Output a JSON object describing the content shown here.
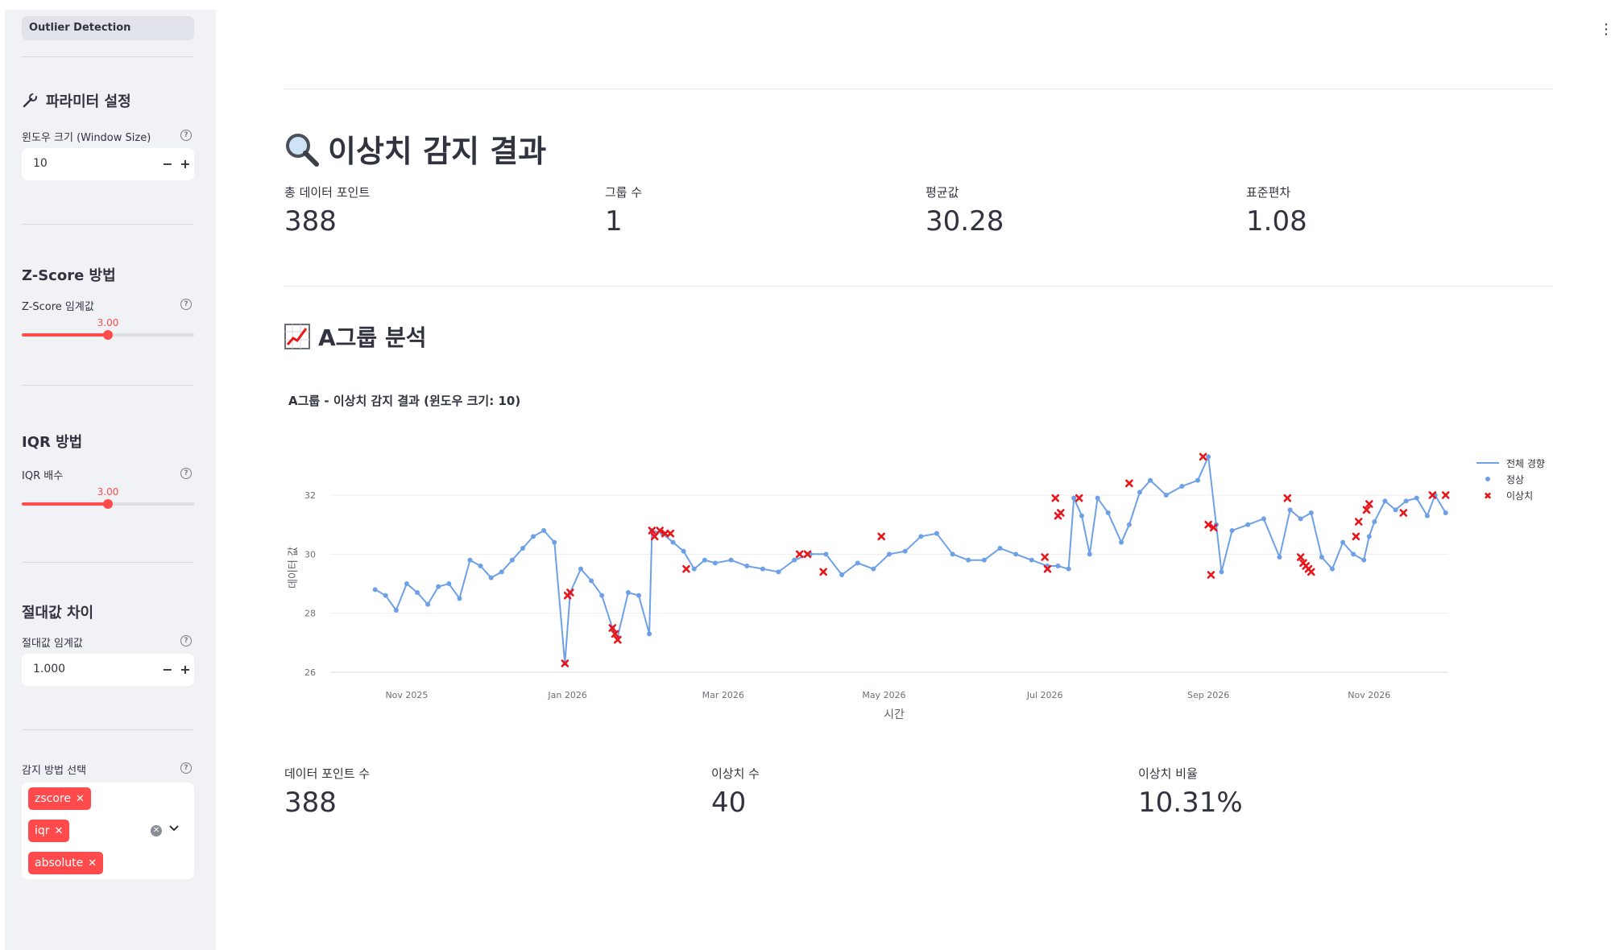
{
  "sidebar": {
    "nav_item": "Outlier Detection",
    "params_title": "파라미터 설정",
    "window_label": "윈도우 크기 (Window Size)",
    "window_value": "10",
    "zscore_title": "Z-Score 방법",
    "zscore_label": "Z-Score 임계값",
    "zscore_value": "3.00",
    "zscore_fraction": 0.5,
    "iqr_title": "IQR 방법",
    "iqr_label": "IQR 배수",
    "iqr_value": "3.00",
    "iqr_fraction": 0.5,
    "abs_title": "절대값 차이",
    "abs_label": "절대값 임계값",
    "abs_value": "1.000",
    "methods_label": "감지 방법 선택",
    "methods": [
      "zscore",
      "iqr",
      "absolute"
    ],
    "minus": "−",
    "plus": "+",
    "help": "?"
  },
  "main": {
    "title": "이상치 감지 결과",
    "summary": [
      {
        "label": "총 데이터 포인트",
        "value": "388"
      },
      {
        "label": "그룹 수",
        "value": "1"
      },
      {
        "label": "평균값",
        "value": "30.28"
      },
      {
        "label": "표준편차",
        "value": "1.08"
      }
    ],
    "group_title": "A그룹 분석",
    "group_metrics": [
      {
        "label": "데이터 포인트 수",
        "value": "388"
      },
      {
        "label": "이상치 수",
        "value": "40"
      },
      {
        "label": "이상치 비율",
        "value": "10.31%"
      }
    ]
  },
  "colors": {
    "accent": "#ff4b4b",
    "series": "#6ea0e8",
    "outlier": "#e8161b"
  },
  "chart_data": {
    "type": "line",
    "title": "A그룹 - 이상치 감지 결과 (윈도우 크기: 10)",
    "xlabel": "시간",
    "ylabel": "데이터 값",
    "x_ticks": [
      "Nov 2025",
      "Jan 2026",
      "Mar 2026",
      "May 2026",
      "Jul 2026",
      "Sep 2026",
      "Nov 2026"
    ],
    "y_ticks": [
      "26",
      "28",
      "30",
      "32"
    ],
    "ylim": [
      26,
      33.5
    ],
    "xlim": [
      "2025-10-03",
      "2026-12-01"
    ],
    "legend": [
      "전체 경향",
      "정상",
      "이상치"
    ],
    "legend_position": "top-right",
    "series": [
      {
        "name": "전체 경향",
        "points": [
          [
            "2025-10-20",
            28.8
          ],
          [
            "2025-10-24",
            28.6
          ],
          [
            "2025-10-28",
            28.1
          ],
          [
            "2025-11-01",
            29.0
          ],
          [
            "2025-11-05",
            28.7
          ],
          [
            "2025-11-09",
            28.3
          ],
          [
            "2025-11-13",
            28.9
          ],
          [
            "2025-11-17",
            29.0
          ],
          [
            "2025-11-21",
            28.5
          ],
          [
            "2025-11-25",
            29.8
          ],
          [
            "2025-11-29",
            29.6
          ],
          [
            "2025-12-03",
            29.2
          ],
          [
            "2025-12-07",
            29.4
          ],
          [
            "2025-12-11",
            29.8
          ],
          [
            "2025-12-15",
            30.2
          ],
          [
            "2025-12-19",
            30.6
          ],
          [
            "2025-12-23",
            30.8
          ],
          [
            "2025-12-27",
            30.4
          ],
          [
            "2025-12-31",
            26.3
          ],
          [
            "2026-01-02",
            28.7
          ],
          [
            "2026-01-06",
            29.5
          ],
          [
            "2026-01-10",
            29.1
          ],
          [
            "2026-01-14",
            28.6
          ],
          [
            "2026-01-18",
            27.5
          ],
          [
            "2026-01-20",
            27.2
          ],
          [
            "2026-01-24",
            28.7
          ],
          [
            "2026-01-28",
            28.6
          ],
          [
            "2026-02-01",
            27.3
          ],
          [
            "2026-02-02",
            30.8
          ],
          [
            "2026-02-06",
            30.7
          ],
          [
            "2026-02-10",
            30.4
          ],
          [
            "2026-02-14",
            30.1
          ],
          [
            "2026-02-18",
            29.5
          ],
          [
            "2026-02-22",
            29.8
          ],
          [
            "2026-02-26",
            29.7
          ],
          [
            "2026-03-04",
            29.8
          ],
          [
            "2026-03-10",
            29.6
          ],
          [
            "2026-03-16",
            29.5
          ],
          [
            "2026-03-22",
            29.4
          ],
          [
            "2026-03-28",
            29.8
          ],
          [
            "2026-04-03",
            30.0
          ],
          [
            "2026-04-09",
            30.0
          ],
          [
            "2026-04-15",
            29.3
          ],
          [
            "2026-04-21",
            29.7
          ],
          [
            "2026-04-27",
            29.5
          ],
          [
            "2026-05-03",
            30.0
          ],
          [
            "2026-05-09",
            30.1
          ],
          [
            "2026-05-15",
            30.6
          ],
          [
            "2026-05-21",
            30.7
          ],
          [
            "2026-05-27",
            30.0
          ],
          [
            "2026-06-02",
            29.8
          ],
          [
            "2026-06-08",
            29.8
          ],
          [
            "2026-06-14",
            30.2
          ],
          [
            "2026-06-20",
            30.0
          ],
          [
            "2026-06-26",
            29.8
          ],
          [
            "2026-07-02",
            29.6
          ],
          [
            "2026-07-06",
            29.6
          ],
          [
            "2026-07-10",
            29.5
          ],
          [
            "2026-07-12",
            31.9
          ],
          [
            "2026-07-15",
            31.3
          ],
          [
            "2026-07-18",
            30.0
          ],
          [
            "2026-07-21",
            31.9
          ],
          [
            "2026-07-25",
            31.4
          ],
          [
            "2026-07-30",
            30.4
          ],
          [
            "2026-08-02",
            31.0
          ],
          [
            "2026-08-06",
            32.1
          ],
          [
            "2026-08-10",
            32.5
          ],
          [
            "2026-08-16",
            32.0
          ],
          [
            "2026-08-22",
            32.3
          ],
          [
            "2026-08-28",
            32.5
          ],
          [
            "2026-09-01",
            33.3
          ],
          [
            "2026-09-04",
            31.0
          ],
          [
            "2026-09-06",
            29.4
          ],
          [
            "2026-09-10",
            30.8
          ],
          [
            "2026-09-16",
            31.0
          ],
          [
            "2026-09-22",
            31.2
          ],
          [
            "2026-09-28",
            29.9
          ],
          [
            "2026-10-02",
            31.5
          ],
          [
            "2026-10-06",
            31.2
          ],
          [
            "2026-10-10",
            31.4
          ],
          [
            "2026-10-14",
            29.9
          ],
          [
            "2026-10-18",
            29.5
          ],
          [
            "2026-10-22",
            30.4
          ],
          [
            "2026-10-26",
            30.0
          ],
          [
            "2026-10-30",
            29.8
          ],
          [
            "2026-11-01",
            30.6
          ],
          [
            "2026-11-03",
            31.1
          ],
          [
            "2026-11-07",
            31.8
          ],
          [
            "2026-11-11",
            31.5
          ],
          [
            "2026-11-15",
            31.8
          ],
          [
            "2026-11-19",
            31.9
          ],
          [
            "2026-11-23",
            31.3
          ],
          [
            "2026-11-26",
            32.0
          ],
          [
            "2026-11-30",
            31.4
          ]
        ]
      },
      {
        "name": "이상치",
        "points": [
          [
            "2025-12-31",
            26.3
          ],
          [
            "2026-01-01",
            28.6
          ],
          [
            "2026-01-02",
            28.7
          ],
          [
            "2026-01-18",
            27.5
          ],
          [
            "2026-01-19",
            27.3
          ],
          [
            "2026-01-20",
            27.1
          ],
          [
            "2026-02-02",
            30.8
          ],
          [
            "2026-02-03",
            30.6
          ],
          [
            "2026-02-05",
            30.8
          ],
          [
            "2026-02-07",
            30.7
          ],
          [
            "2026-02-09",
            30.7
          ],
          [
            "2026-02-15",
            29.5
          ],
          [
            "2026-03-30",
            30.0
          ],
          [
            "2026-04-02",
            30.0
          ],
          [
            "2026-04-08",
            29.4
          ],
          [
            "2026-04-30",
            30.6
          ],
          [
            "2026-07-01",
            29.9
          ],
          [
            "2026-07-02",
            29.5
          ],
          [
            "2026-07-05",
            31.9
          ],
          [
            "2026-07-06",
            31.3
          ],
          [
            "2026-07-07",
            31.4
          ],
          [
            "2026-07-14",
            31.9
          ],
          [
            "2026-08-02",
            32.4
          ],
          [
            "2026-08-30",
            33.3
          ],
          [
            "2026-09-01",
            31.0
          ],
          [
            "2026-09-02",
            29.3
          ],
          [
            "2026-09-03",
            30.9
          ],
          [
            "2026-10-01",
            31.9
          ],
          [
            "2026-10-06",
            29.9
          ],
          [
            "2026-10-07",
            29.7
          ],
          [
            "2026-10-08",
            29.6
          ],
          [
            "2026-10-09",
            29.5
          ],
          [
            "2026-10-10",
            29.4
          ],
          [
            "2026-10-27",
            30.6
          ],
          [
            "2026-10-28",
            31.1
          ],
          [
            "2026-10-31",
            31.5
          ],
          [
            "2026-11-01",
            31.7
          ],
          [
            "2026-11-14",
            31.4
          ],
          [
            "2026-11-25",
            32.0
          ],
          [
            "2026-11-30",
            32.0
          ]
        ]
      }
    ]
  }
}
